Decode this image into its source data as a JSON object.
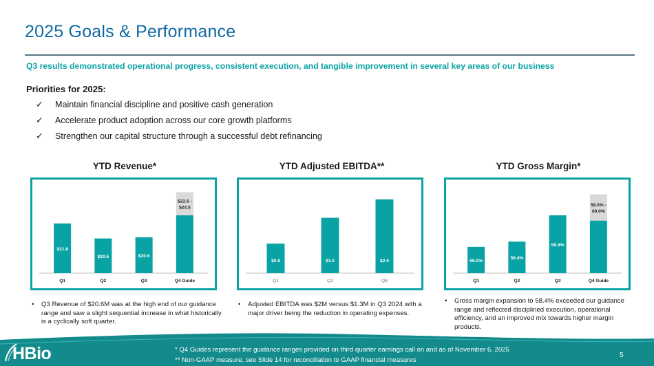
{
  "title": "2025 Goals & Performance",
  "subtitle": "Q3 results demonstrated operational progress, consistent execution, and tangible improvement in several key areas of our business",
  "priorities": {
    "heading": "Priorities for 2025:",
    "items": [
      "Maintain financial discipline and positive cash generation",
      "Accelerate product adoption across our core growth platforms",
      "Strengthen our capital structure through a successful debt refinancing"
    ],
    "check_icon": "check-icon"
  },
  "chart_data": [
    {
      "type": "bar",
      "title": "YTD Revenue*",
      "categories": [
        "Q1",
        "Q2",
        "Q3",
        "Q4 Guide"
      ],
      "values": [
        21.8,
        20.5,
        20.6,
        22.5
      ],
      "labels": [
        "$21.8",
        "$20.5",
        "$20.6",
        "$22.5 -\n$24.5"
      ],
      "range": {
        "category": "Q4 Guide",
        "low": 22.5,
        "high": 24.5
      },
      "ylim": [
        17.5,
        25
      ]
    },
    {
      "type": "bar",
      "title": "YTD Adjusted EBITDA**",
      "categories": [
        "Q1",
        "Q2",
        "Q3"
      ],
      "values": [
        0.8,
        1.5,
        2.0
      ],
      "labels": [
        "$0.8",
        "$1.5",
        "$2.0"
      ],
      "ylim": [
        0,
        2.35
      ]
    },
    {
      "type": "bar",
      "title": "YTD Gross Margin*",
      "categories": [
        "Q1",
        "Q2",
        "Q3",
        "Q4 Guide"
      ],
      "values": [
        56.0,
        56.4,
        58.4,
        58.0
      ],
      "labels": [
        "56.0%",
        "56.4%",
        "58.4%",
        "58.0% -\n60.0%"
      ],
      "range": {
        "category": "Q4 Guide",
        "low": 58.0,
        "high": 60.0
      },
      "ylim": [
        54,
        60.6
      ]
    }
  ],
  "notes": [
    "Q3 Revenue of $20.6M was at the high end of our guidance range and saw a slight sequential increase in what historically is a cyclically soft quarter.",
    "Adjusted EBITDA was $2M versus $1.3M in Q3 2024 with a major driver being the reduction in operating expenses.",
    "Gross margin expansion to 58.4% exceeded our guidance range and reflected disciplined execution, operational efficiency, and an improved mix towards higher margin products."
  ],
  "footer": {
    "logo": "HBio",
    "footnote1": "* Q4 Guides represent the guidance ranges provided on third quarter earnings call on and as of November 6, 2025",
    "footnote2": "** Non-GAAP measure, see Slide 14 for reconciliation to GAAP financial measures",
    "page_number": "5"
  },
  "colors": {
    "title": "#0f6aa3",
    "accent": "#0aa3a5",
    "bar": "#0aa3a5",
    "range": "#d9d9d9",
    "footer": "#138a8c"
  }
}
